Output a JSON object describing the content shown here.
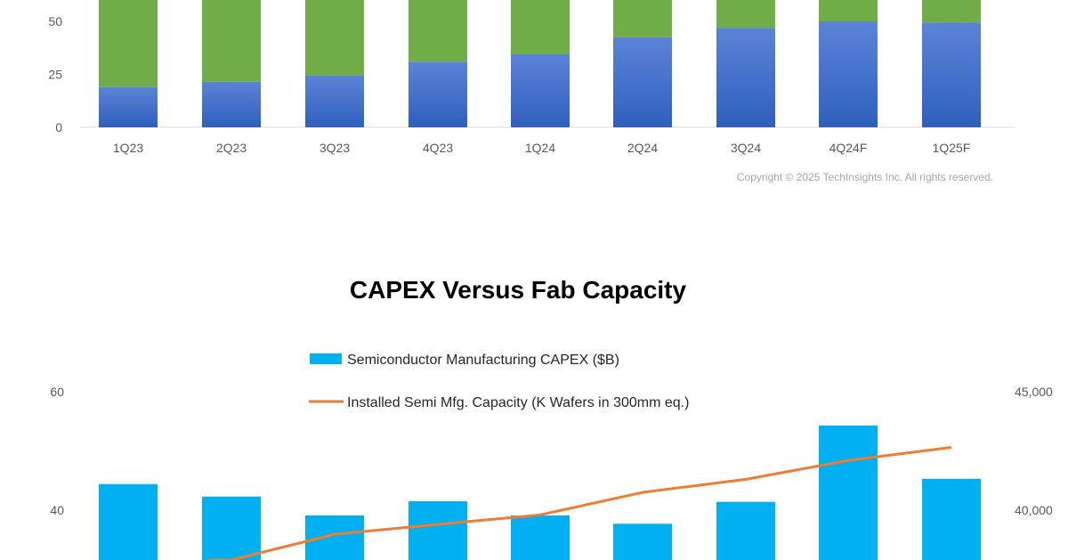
{
  "chart_data": [
    {
      "type": "bar",
      "stacked": true,
      "categories": [
        "1Q23",
        "2Q23",
        "3Q23",
        "4Q23",
        "1Q24",
        "2Q24",
        "3Q24",
        "4Q24F",
        "1Q25F"
      ],
      "series": [
        {
          "values": [
            19,
            21.5,
            24.5,
            31,
            34.5,
            42.5,
            47,
            50,
            49.5
          ],
          "color": "#4472c4"
        },
        {
          "values": [
            null,
            null,
            null,
            null,
            null,
            null,
            null,
            null,
            null
          ],
          "color": "#70ad47"
        }
      ],
      "yticks": [
        "0",
        "25",
        "50"
      ],
      "ylim": [
        0,
        61
      ],
      "grid": false,
      "copyright": "Copyright © 2025 TechInsights Inc.  All rights reserved."
    },
    {
      "type": "bar+line",
      "title": "CAPEX Versus Fab Capacity",
      "legend_position": "top",
      "series": [
        {
          "name": "Semiconductor Manufacturing CAPEX ($B)",
          "type": "bar",
          "axis": "left",
          "color": "#00b0f0",
          "values": [
            44.4,
            42.3,
            39.1,
            41.5,
            39.1,
            37.7,
            41.4,
            54.3,
            45.3
          ]
        },
        {
          "name": "Installed Semi Mfg. Capacity (K Wafers in 300mm eq.)",
          "type": "line",
          "axis": "right",
          "color": "#ed7d31",
          "values": [
            null,
            37850,
            38980,
            39400,
            39800,
            40750,
            41300,
            42100,
            42650
          ]
        }
      ],
      "yticks_left": [
        "60",
        "40"
      ],
      "yticks_right": [
        "45,000",
        "40,000"
      ],
      "ylim_left": [
        30,
        60
      ],
      "ylim_right": [
        37500,
        45000
      ],
      "grid": false
    }
  ]
}
